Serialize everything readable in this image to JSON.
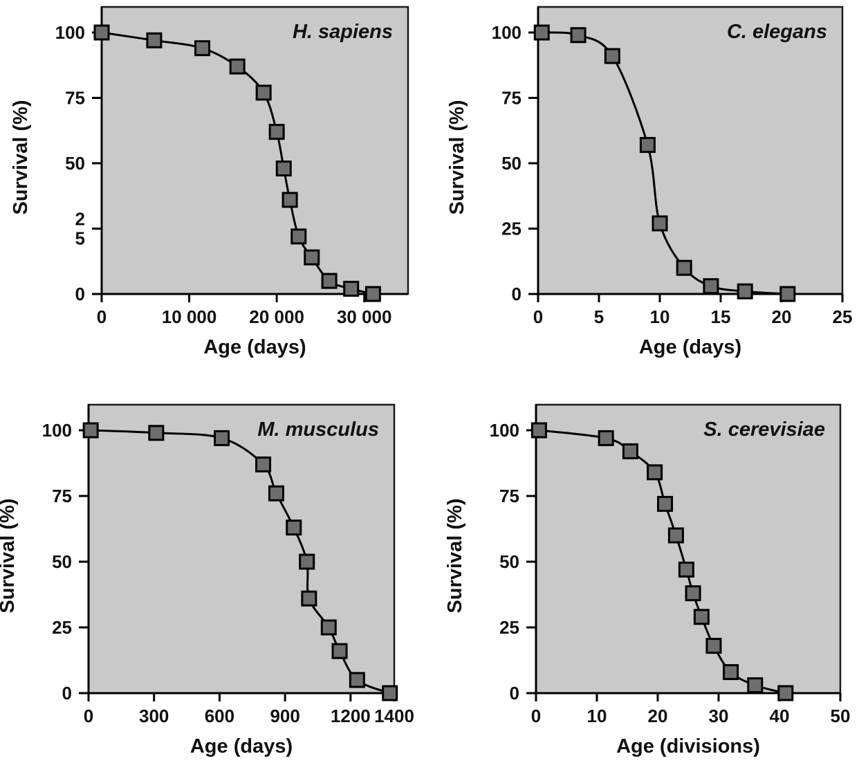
{
  "chart_data": [
    {
      "type": "line",
      "title": "H. sapiens",
      "xlabel": "Age (days)",
      "ylabel": "Survival (%)",
      "xlim": [
        0,
        35000
      ],
      "ylim": [
        0,
        100
      ],
      "x_tick_values": [
        0,
        10000,
        20000,
        30000
      ],
      "x_tick_labels": [
        "0",
        "10 000",
        "20 000",
        "30 000"
      ],
      "y_tick_values": [
        0,
        25,
        50,
        75,
        100
      ],
      "y_tick_labels": [
        "0",
        "2\n5",
        "50",
        "75",
        "100"
      ],
      "grid": false,
      "series": [
        {
          "x": [
            0,
            6000,
            11500,
            15500,
            18500,
            20000,
            20800,
            21500,
            22500,
            24000,
            26000,
            28500,
            31000
          ],
          "values": [
            100,
            97,
            94,
            87,
            77,
            62,
            48,
            36,
            22,
            14,
            5,
            2,
            0
          ]
        }
      ]
    },
    {
      "type": "line",
      "title": "C. elegans",
      "xlabel": "Age (days)",
      "ylabel": "Survival (%)",
      "xlim": [
        0,
        25
      ],
      "ylim": [
        0,
        100
      ],
      "x_tick_values": [
        0,
        5,
        10,
        15,
        20,
        25
      ],
      "x_tick_labels": [
        "0",
        "5",
        "10",
        "15",
        "20",
        "25"
      ],
      "y_tick_values": [
        0,
        25,
        50,
        75,
        100
      ],
      "y_tick_labels": [
        "0",
        "25",
        "50",
        "75",
        "100"
      ],
      "grid": false,
      "series": [
        {
          "x": [
            0.3,
            3.3,
            6.1,
            9.0,
            10.0,
            12.0,
            14.2,
            17.0,
            20.5
          ],
          "values": [
            100,
            99,
            91,
            57,
            27,
            10,
            3,
            1,
            0
          ]
        }
      ]
    },
    {
      "type": "line",
      "title": "M. musculus",
      "xlabel": "Age (days)",
      "ylabel": "Survival (%)",
      "xlim": [
        0,
        1400
      ],
      "ylim": [
        0,
        100
      ],
      "x_tick_values": [
        0,
        300,
        600,
        900,
        1200,
        1400
      ],
      "x_tick_labels": [
        "0",
        "300",
        "600",
        "900",
        "1200",
        "1400"
      ],
      "y_tick_values": [
        0,
        25,
        50,
        75,
        100
      ],
      "y_tick_labels": [
        "0",
        "25",
        "50",
        "75",
        "100"
      ],
      "grid": false,
      "series": [
        {
          "x": [
            10,
            310,
            610,
            800,
            860,
            940,
            1000,
            1010,
            1100,
            1150,
            1230,
            1380
          ],
          "values": [
            100,
            99,
            97,
            87,
            76,
            63,
            50,
            36,
            25,
            16,
            5,
            0
          ]
        }
      ]
    },
    {
      "type": "line",
      "title": "S. cerevisiae",
      "xlabel": "Age (divisions)",
      "ylabel": "Survival (%)",
      "xlim": [
        0,
        50
      ],
      "ylim": [
        0,
        100
      ],
      "x_tick_values": [
        0,
        10,
        20,
        30,
        40,
        50
      ],
      "x_tick_labels": [
        "0",
        "10",
        "20",
        "30",
        "40",
        "50"
      ],
      "y_tick_values": [
        0,
        25,
        50,
        75,
        100
      ],
      "y_tick_labels": [
        "0",
        "25",
        "50",
        "75",
        "100"
      ],
      "grid": false,
      "series": [
        {
          "x": [
            0.5,
            11.5,
            15.5,
            19.5,
            21.2,
            23.0,
            24.7,
            25.8,
            27.2,
            29.2,
            32.0,
            36.0,
            41.0
          ],
          "values": [
            100,
            97,
            92,
            84,
            72,
            60,
            47,
            38,
            29,
            18,
            8,
            3,
            0
          ]
        }
      ]
    }
  ]
}
